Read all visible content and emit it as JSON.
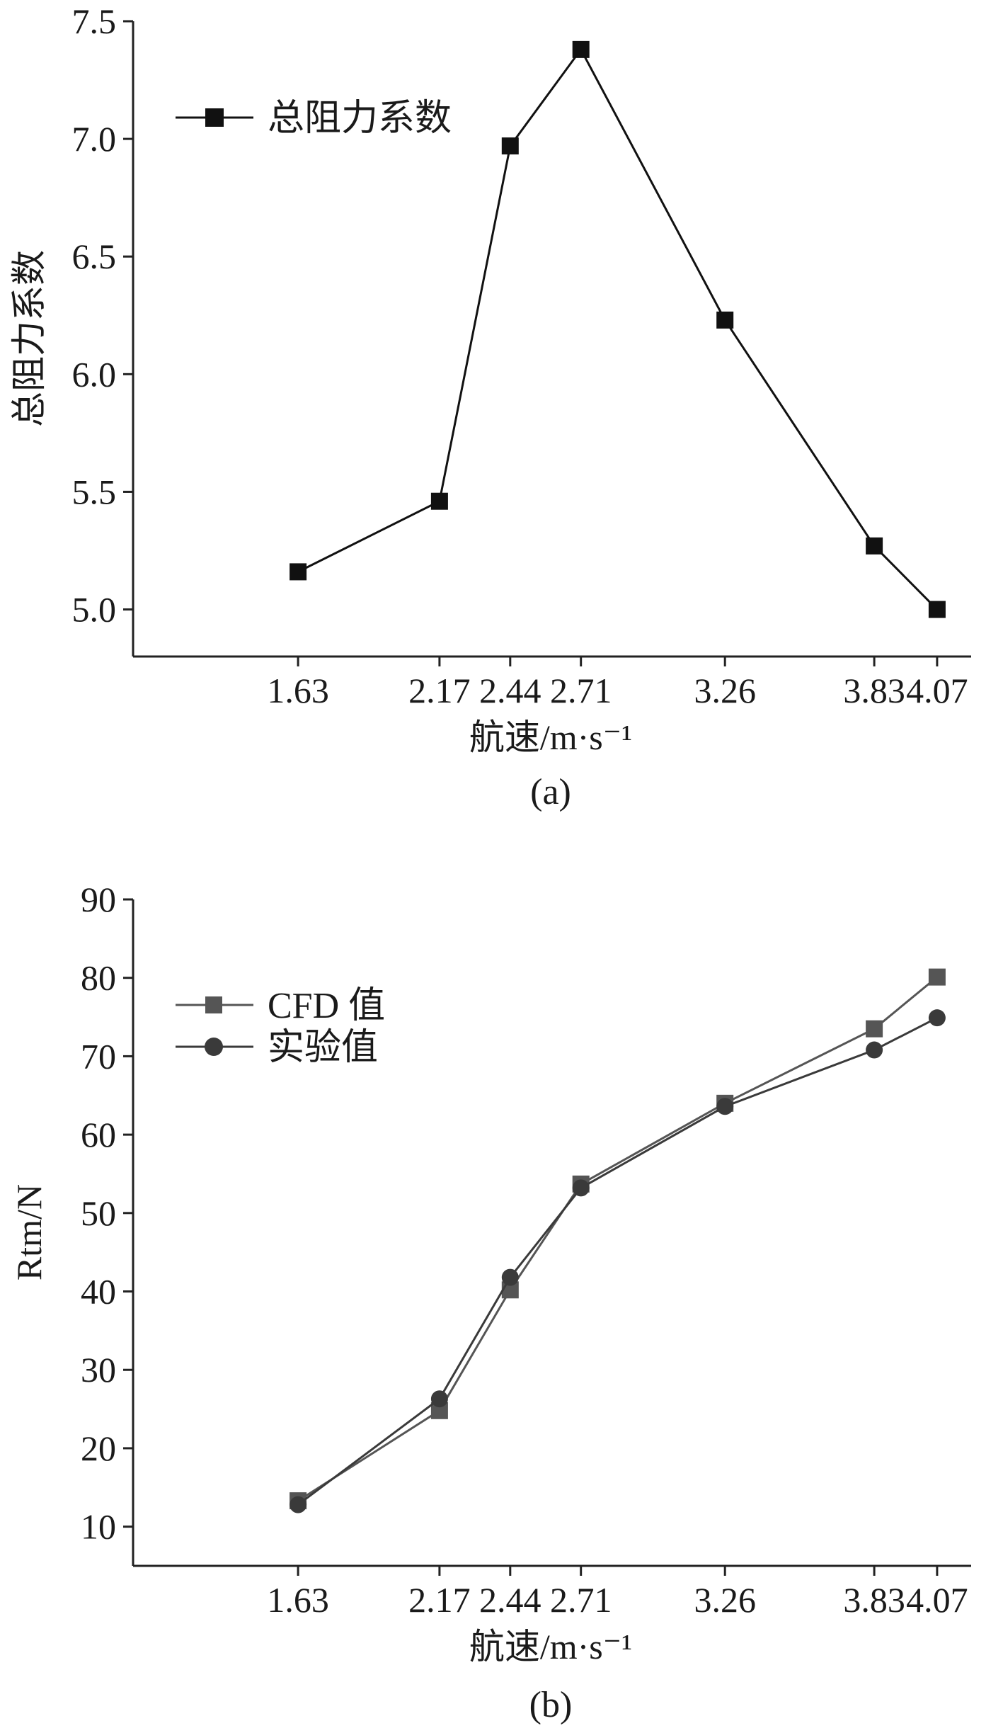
{
  "chart_data": [
    {
      "type": "line",
      "panel_label": "(a)",
      "x": [
        1.63,
        2.17,
        2.44,
        2.71,
        3.26,
        3.83,
        4.07
      ],
      "x_tick_labels": [
        "1.63",
        "2.17",
        "2.44",
        "2.71",
        "3.26",
        "3.83",
        "4.07"
      ],
      "xlabel": "航速/m·s⁻¹",
      "ylabel": "总阻力系数",
      "ylim": [
        4.8,
        7.5
      ],
      "y_ticks": [
        5.0,
        5.5,
        6.0,
        6.5,
        7.0,
        7.5
      ],
      "y_tick_labels": [
        "5.0",
        "5.5",
        "6.0",
        "6.5",
        "7.0",
        "7.5"
      ],
      "legend_position": "top-left",
      "grid": false,
      "series": [
        {
          "name": "总阻力系数",
          "marker": "square",
          "color": "#111111",
          "values": [
            5.16,
            5.46,
            6.97,
            7.38,
            6.23,
            5.27,
            5.0
          ]
        }
      ]
    },
    {
      "type": "line",
      "panel_label": "(b)",
      "x": [
        1.63,
        2.17,
        2.44,
        2.71,
        3.26,
        3.83,
        4.07
      ],
      "x_tick_labels": [
        "1.63",
        "2.17",
        "2.44",
        "2.71",
        "3.26",
        "3.83",
        "4.07"
      ],
      "xlabel": "航速/m·s⁻¹",
      "ylabel": "Rtm/N",
      "ylim": [
        5,
        90
      ],
      "y_ticks": [
        10,
        20,
        30,
        40,
        50,
        60,
        70,
        80,
        90
      ],
      "y_tick_labels": [
        "10",
        "20",
        "30",
        "40",
        "50",
        "60",
        "70",
        "80",
        "90"
      ],
      "legend_position": "top-left",
      "grid": false,
      "series": [
        {
          "name": "CFD 值",
          "marker": "square",
          "color": "#555555",
          "values": [
            13.3,
            24.8,
            40.2,
            53.7,
            64.0,
            73.5,
            80.1
          ]
        },
        {
          "name": "实验值",
          "marker": "circle",
          "color": "#3a3a3a",
          "values": [
            12.8,
            26.3,
            41.8,
            53.2,
            63.6,
            70.8,
            74.9
          ]
        }
      ]
    }
  ]
}
